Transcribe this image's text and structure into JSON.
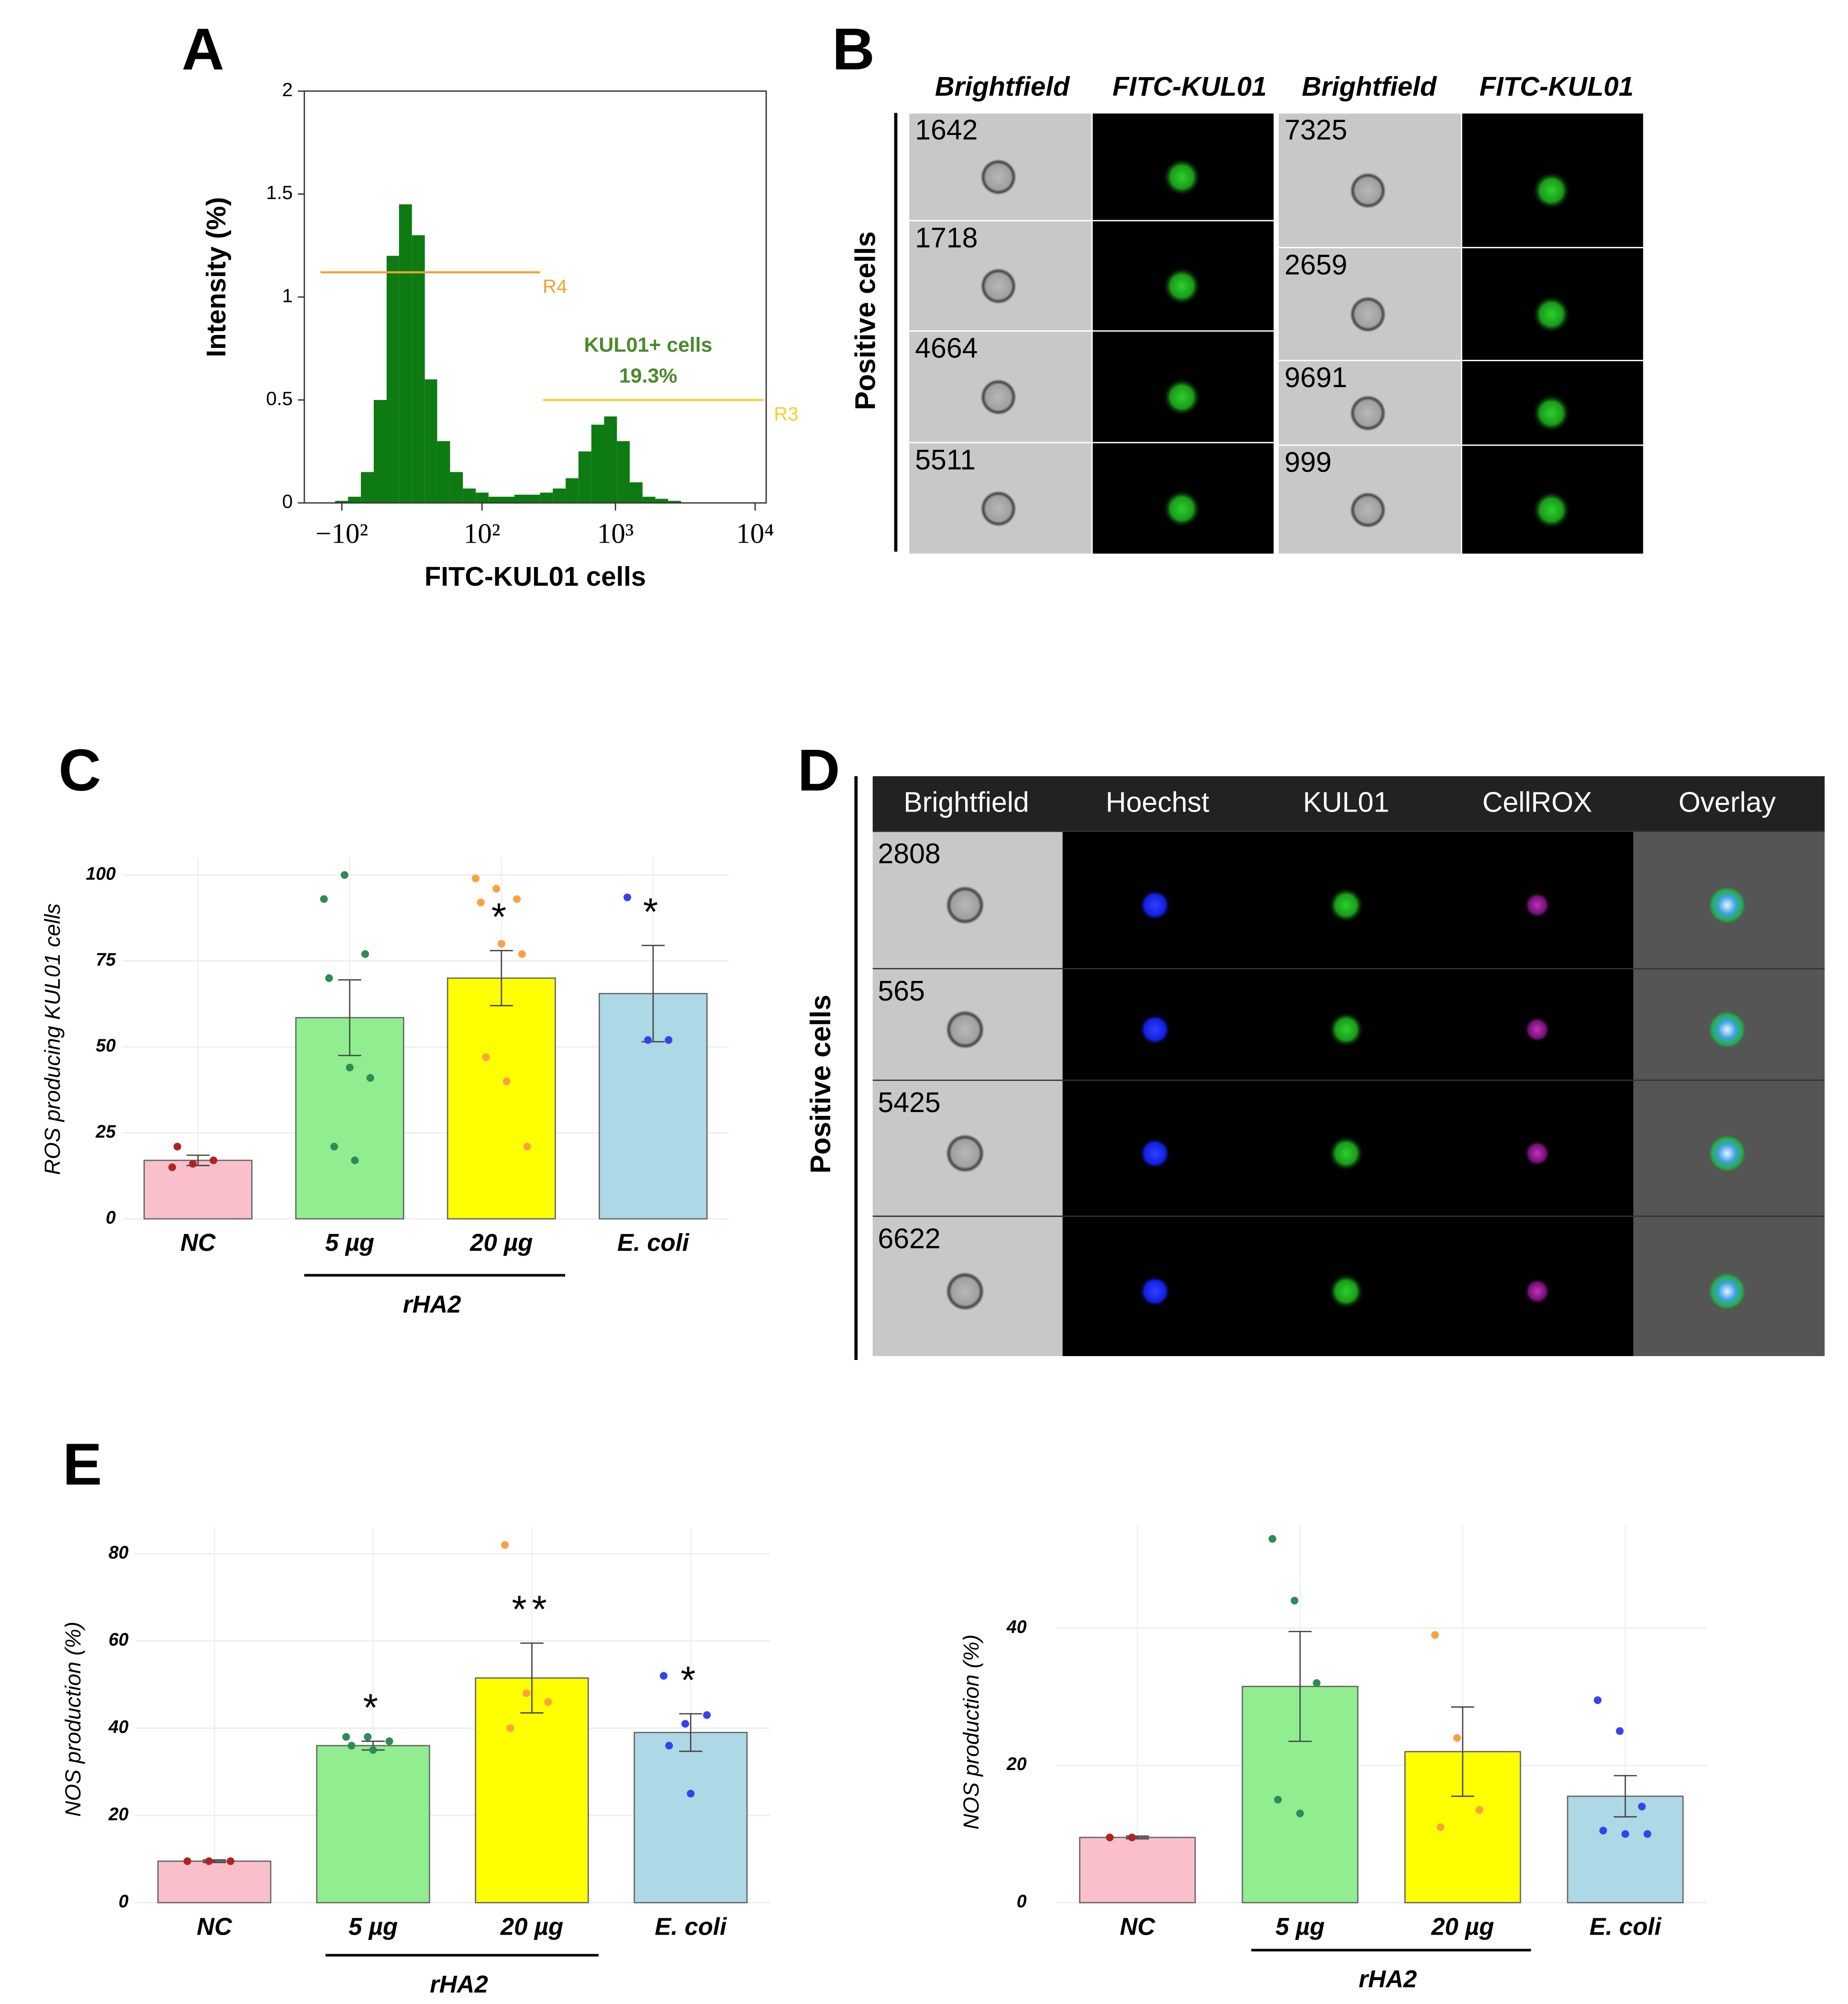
{
  "panel_labels": [
    "A",
    "B",
    "C",
    "D",
    "E"
  ],
  "chart_data": [
    {
      "type": "histogram",
      "ylabel": "Intensity (%)",
      "xlabel": "FITC-KUL01 cells",
      "xscale": "asinh",
      "color": "#0e7a12",
      "bins": [
        -183,
        -146,
        -114,
        -88,
        -66,
        -47,
        -30,
        -15,
        0,
        15,
        30,
        47,
        66,
        88,
        114,
        146,
        183,
        229,
        285,
        353,
        438,
        542,
        671,
        829,
        1025,
        1266,
        1564,
        1932,
        2386,
        2947,
        3640,
        4494,
        5550,
        6860,
        8470,
        10460
      ],
      "counts": [
        0,
        0,
        0.01,
        0.03,
        0.15,
        0.5,
        1.2,
        1.45,
        1.3,
        0.6,
        0.3,
        0.15,
        0.07,
        0.05,
        0.03,
        0.03,
        0.04,
        0.04,
        0.05,
        0.07,
        0.12,
        0.25,
        0.38,
        0.42,
        0.3,
        0.1,
        0.03,
        0.02,
        0.01,
        0,
        0,
        0,
        0,
        0,
        0
      ],
      "xlim": [
        -200,
        12000
      ],
      "xticks": [
        {
          "value": -100,
          "label": "−10²"
        },
        {
          "value": 100,
          "label": "10²"
        },
        {
          "value": 1000,
          "label": "10³"
        },
        {
          "value": 10000,
          "label": "10⁴"
        }
      ],
      "ylim": [
        0,
        2
      ],
      "yticks": [
        0,
        0.5,
        1,
        1.5,
        2
      ],
      "gates": [
        {
          "name": "R4",
          "color": "#f5a030",
          "y": 1.12,
          "x": [
            -150,
            285
          ]
        },
        {
          "name": "R3",
          "color": "#f2d22a",
          "y": 0.5,
          "x": [
            300,
            11500
          ]
        }
      ],
      "annotations": [
        "KUL01+ cells",
        "19.3%"
      ]
    },
    {
      "type": "bar",
      "ylabel": "ROS producing KUL01 cells",
      "categories": [
        "NC",
        "5 µg",
        "20 µg",
        "E. coli"
      ],
      "values": [
        17,
        58.5,
        70,
        65.5
      ],
      "errors": [
        1.5,
        11,
        8,
        14
      ],
      "colors": [
        "#f9c0cb",
        "#90ee90",
        "#ffff00",
        "#add8e6"
      ],
      "point_colors": [
        "#b22222",
        "#2e8b57",
        "#ffa040",
        "#3344ee"
      ],
      "points": [
        [
          15,
          16,
          17,
          21
        ],
        [
          93,
          100,
          77,
          70,
          44,
          41,
          21,
          17
        ],
        [
          99,
          96,
          93,
          92,
          80,
          77,
          47,
          40,
          21
        ],
        [
          93.5,
          52,
          52
        ]
      ],
      "significance": [
        null,
        null,
        "*",
        "*"
      ],
      "group": {
        "label": "rHA2",
        "members": [
          1,
          2
        ]
      },
      "ylim": [
        0,
        105
      ],
      "yticks": [
        0,
        25,
        50,
        75,
        100
      ],
      "grid": true
    },
    {
      "type": "bar",
      "ylabel": "NOS production (%)",
      "categories": [
        "NC",
        "5 µg",
        "20 µg",
        "E. coli"
      ],
      "values": [
        9.5,
        36,
        51.5,
        39
      ],
      "errors": [
        0.3,
        1,
        8,
        4.3
      ],
      "colors": [
        "#f9c0cb",
        "#90ee90",
        "#ffff00",
        "#add8e6"
      ],
      "point_colors": [
        "#b22222",
        "#2e8b57",
        "#ffa040",
        "#3344ee"
      ],
      "points": [
        [
          9.5,
          9.5,
          9.5
        ],
        [
          38,
          38,
          37,
          36,
          35
        ],
        [
          82,
          48,
          46,
          40
        ],
        [
          52,
          41,
          43,
          36,
          25
        ]
      ],
      "significance": [
        null,
        "*",
        "**",
        "*"
      ],
      "group": {
        "label": "rHA2",
        "members": [
          1,
          2
        ]
      },
      "ylim": [
        0,
        86
      ],
      "yticks": [
        0,
        20,
        40,
        60,
        80
      ],
      "grid": true
    },
    {
      "type": "bar",
      "ylabel": "NOS production (%)",
      "categories": [
        "NC",
        "5 µg",
        "20 µg",
        "E. coli"
      ],
      "values": [
        9.5,
        31.5,
        22,
        15.5
      ],
      "errors": [
        0.2,
        8,
        6.5,
        3
      ],
      "colors": [
        "#f9c0cb",
        "#90ee90",
        "#ffff00",
        "#add8e6"
      ],
      "point_colors": [
        "#b22222",
        "#2e8b57",
        "#ffa040",
        "#3344ee"
      ],
      "points": [
        [
          9.5,
          9.5
        ],
        [
          53,
          44,
          32,
          15,
          13
        ],
        [
          39,
          24,
          13.5,
          11
        ],
        [
          29.5,
          25,
          14,
          10.5,
          10,
          10
        ]
      ],
      "significance": [
        null,
        null,
        null,
        null
      ],
      "group": {
        "label": "rHA2",
        "members": [
          1,
          2
        ]
      },
      "ylim": [
        0,
        55
      ],
      "yticks": [
        0,
        20,
        40
      ],
      "grid": true
    }
  ],
  "panel_b": {
    "columns": [
      "Brightfield",
      "FITC-KUL01",
      "Brightfield",
      "FITC-KUL01"
    ],
    "side_label": "Positive cells",
    "left_ids": [
      "1642",
      "1718",
      "4664",
      "5511"
    ],
    "right_ids": [
      "7325",
      "2659",
      "9691",
      "999"
    ]
  },
  "panel_d": {
    "columns": [
      "Brightfield",
      "Hoechst",
      "KUL01",
      "CellROX",
      "Overlay"
    ],
    "side_label": "Positive cells",
    "ids": [
      "2808",
      "565",
      "5425",
      "6622"
    ]
  }
}
